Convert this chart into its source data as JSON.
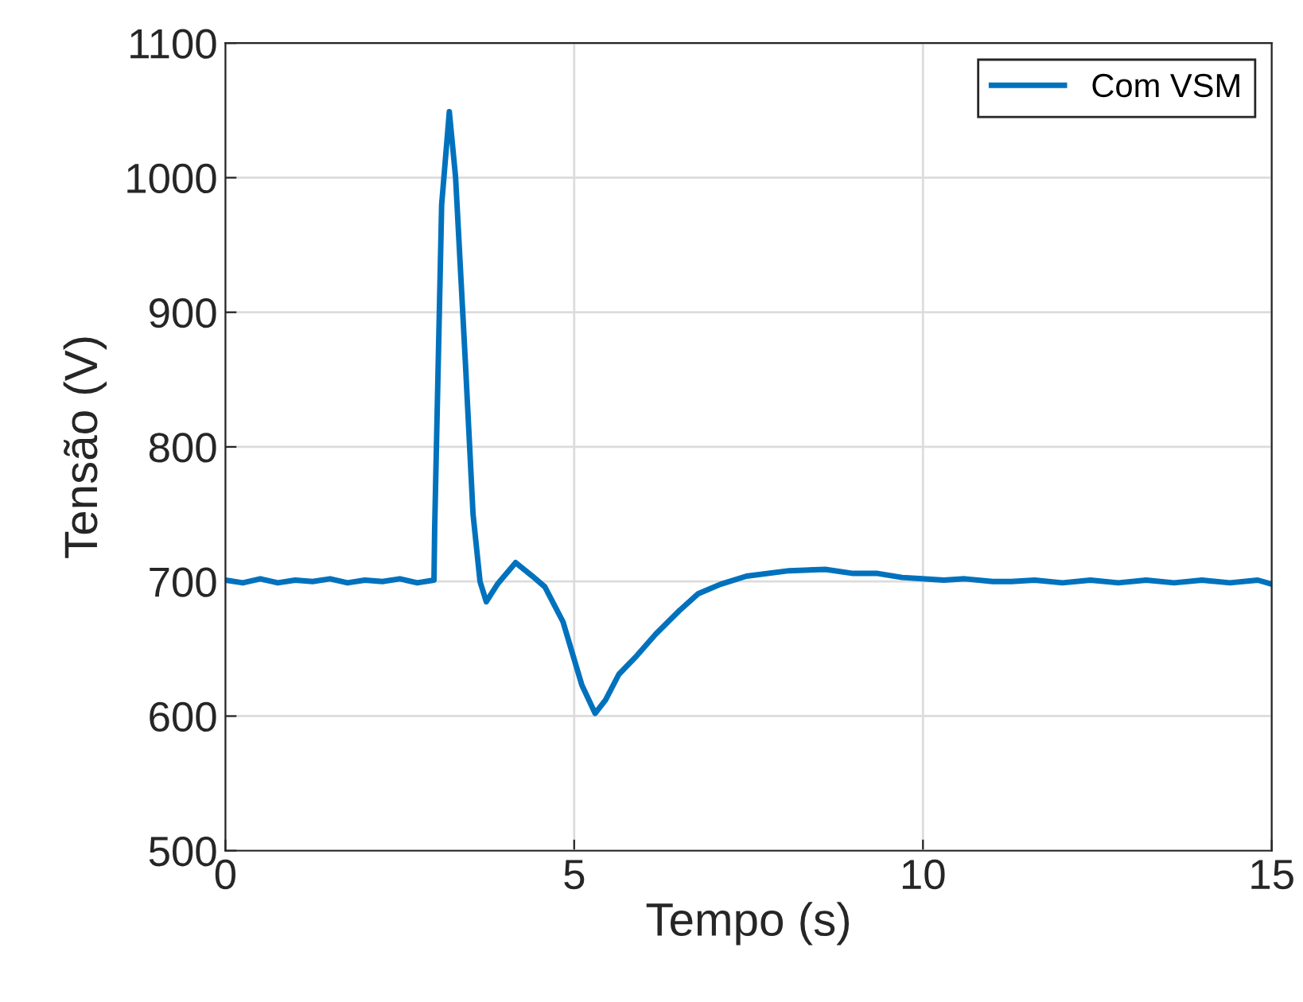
{
  "chart_data": {
    "type": "line",
    "xlabel": "Tempo (s)",
    "ylabel": "Tensão (V)",
    "xlim": [
      0,
      15
    ],
    "xticks": [
      0,
      5,
      10,
      15
    ],
    "ylim": [
      500,
      1100
    ],
    "yticks": [
      500,
      600,
      700,
      800,
      900,
      1000,
      1100
    ],
    "grid": true,
    "legend": "top right",
    "marker": "none",
    "line_style": "solid",
    "series": [
      {
        "name": "Com VSM",
        "color": "#0072bd",
        "x": [
          0,
          0.25,
          0.5,
          0.75,
          1,
          1.25,
          1.5,
          1.75,
          2,
          2.25,
          2.5,
          2.75,
          2.99,
          3.0,
          3.1,
          3.21,
          3.3,
          3.44,
          3.55,
          3.65,
          3.74,
          3.9,
          4.16,
          4.4,
          4.58,
          4.84,
          5.11,
          5.3,
          5.45,
          5.64,
          5.9,
          6.17,
          6.5,
          6.78,
          7.1,
          7.47,
          8.08,
          8.6,
          9.0,
          9.35,
          9.7,
          9.99,
          10.3,
          10.6,
          11.0,
          11.27,
          11.6,
          12.0,
          12.4,
          12.8,
          13.2,
          13.6,
          14.0,
          14.4,
          14.8,
          15
        ],
        "values": [
          701,
          699,
          702,
          699,
          701,
          700,
          702,
          699,
          701,
          700,
          702,
          699,
          701,
          740,
          980,
          1049,
          1000,
          863,
          750,
          700,
          685,
          698,
          714,
          704,
          696,
          670,
          623,
          602,
          612,
          631,
          645,
          661,
          678,
          691,
          698,
          704,
          708,
          709,
          706,
          706,
          703,
          702,
          701,
          702,
          700,
          700,
          701,
          699,
          701,
          699,
          701,
          699,
          701,
          699,
          701,
          698
        ]
      }
    ]
  }
}
